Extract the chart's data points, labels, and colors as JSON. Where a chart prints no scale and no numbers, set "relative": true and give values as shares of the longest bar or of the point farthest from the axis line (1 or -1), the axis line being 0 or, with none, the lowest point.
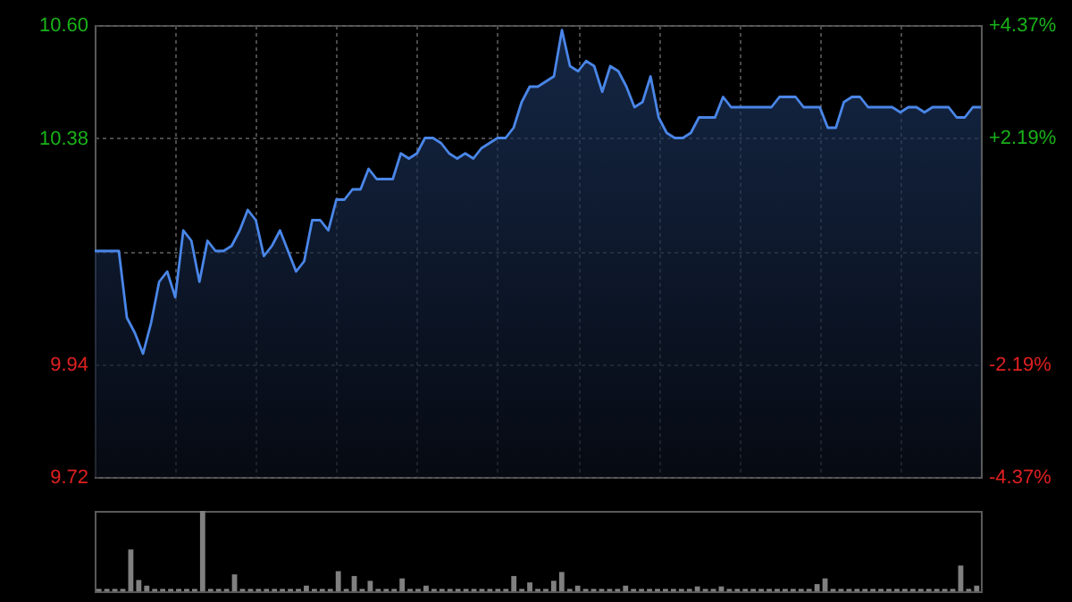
{
  "chart_data": [
    {
      "type": "area",
      "color": "#4a86e8",
      "categories": [
        null,
        null,
        null,
        null,
        null,
        null,
        null,
        null,
        null,
        null,
        null,
        null,
        null,
        null,
        null,
        null,
        null,
        null,
        null,
        null,
        null,
        null,
        null,
        null,
        null,
        null,
        null,
        null,
        null,
        null,
        null,
        null,
        null,
        null,
        null,
        null,
        null,
        null,
        null,
        null,
        null,
        null,
        null,
        null,
        null,
        null,
        null,
        null,
        null,
        null,
        null,
        null,
        null,
        null,
        null,
        null,
        null,
        null,
        null,
        null,
        null,
        null,
        null,
        null,
        null,
        null,
        null,
        null,
        null,
        null,
        null,
        null,
        null,
        null,
        null,
        null,
        null,
        null,
        null,
        null,
        null,
        null,
        null,
        null,
        null,
        null,
        null,
        null,
        null,
        null,
        null,
        null,
        null,
        null,
        null,
        null,
        null,
        null,
        null,
        null,
        null,
        null,
        null,
        null,
        null,
        null,
        null,
        null,
        null,
        null,
        null
      ],
      "values": [
        10.16,
        10.16,
        10.16,
        10.16,
        10.03,
        10.0,
        9.96,
        10.02,
        10.1,
        10.12,
        10.07,
        10.2,
        10.18,
        10.1,
        10.18,
        10.16,
        10.16,
        10.17,
        10.2,
        10.24,
        10.22,
        10.15,
        10.17,
        10.2,
        10.16,
        10.12,
        10.14,
        10.22,
        10.22,
        10.2,
        10.26,
        10.26,
        10.28,
        10.28,
        10.32,
        10.3,
        10.3,
        10.3,
        10.35,
        10.34,
        10.35,
        10.38,
        10.38,
        10.37,
        10.35,
        10.34,
        10.35,
        10.34,
        10.36,
        10.37,
        10.38,
        10.38,
        10.4,
        10.45,
        10.48,
        10.48,
        10.49,
        10.5,
        10.59,
        10.52,
        10.51,
        10.53,
        10.52,
        10.47,
        10.52,
        10.51,
        10.48,
        10.44,
        10.45,
        10.5,
        10.42,
        10.39,
        10.38,
        10.38,
        10.39,
        10.42,
        10.42,
        10.42,
        10.46,
        10.44,
        10.44,
        10.44,
        10.44,
        10.44,
        10.44,
        10.46,
        10.46,
        10.46,
        10.44,
        10.44,
        10.44,
        10.4,
        10.4,
        10.45,
        10.46,
        10.46,
        10.44,
        10.44,
        10.44,
        10.44,
        10.43,
        10.44,
        10.44,
        10.43,
        10.44,
        10.44,
        10.44,
        10.42,
        10.42,
        10.44,
        10.44
      ],
      "ylim": [
        9.72,
        10.6
      ],
      "yticks": [
        9.72,
        9.94,
        {
          "value": 10.16,
          "label": null
        },
        10.38,
        {
          "value": 10.6,
          "label": "10.60"
        }
      ],
      "y2lim": [
        -4.37,
        4.37
      ],
      "y2ticks": [
        {
          "value": -4.37,
          "label": "-4.37%"
        },
        {
          "value": -2.19,
          "label": "-2.19%"
        },
        {
          "value": 0,
          "label": null
        },
        {
          "value": 2.19,
          "label": "+2.19%"
        },
        {
          "value": 4.37,
          "label": "+4.37%"
        }
      ],
      "grid": true
    },
    {
      "type": "bar",
      "relative": true,
      "color": "#808080",
      "categories": [
        null,
        null,
        null,
        null,
        null,
        null,
        null,
        null,
        null,
        null,
        null,
        null,
        null,
        null,
        null,
        null,
        null,
        null,
        null,
        null,
        null,
        null,
        null,
        null,
        null,
        null,
        null,
        null,
        null,
        null,
        null,
        null,
        null,
        null,
        null,
        null,
        null,
        null,
        null,
        null,
        null,
        null,
        null,
        null,
        null,
        null,
        null,
        null,
        null,
        null,
        null,
        null,
        null,
        null,
        null,
        null,
        null,
        null,
        null,
        null,
        null,
        null,
        null,
        null,
        null,
        null,
        null,
        null,
        null,
        null,
        null,
        null,
        null,
        null,
        null,
        null,
        null,
        null,
        null,
        null,
        null,
        null,
        null,
        null,
        null,
        null,
        null,
        null,
        null,
        null,
        null,
        null,
        null,
        null,
        null,
        null,
        null,
        null,
        null,
        null,
        null,
        null,
        null,
        null,
        null,
        null,
        null,
        null,
        null,
        null,
        null
      ],
      "values": [
        0.03,
        0.03,
        0.03,
        0.03,
        0.52,
        0.14,
        0.07,
        0.03,
        0.03,
        0.03,
        0.03,
        0.03,
        0.03,
        1,
        0.03,
        0.03,
        0.03,
        0.21,
        0.03,
        0.03,
        0.03,
        0.03,
        0.03,
        0.03,
        0.03,
        0.03,
        0.07,
        0.03,
        0.03,
        0.03,
        0.25,
        0.03,
        0.19,
        0.03,
        0.13,
        0.03,
        0.03,
        0.03,
        0.16,
        0.03,
        0.03,
        0.07,
        0.03,
        0.03,
        0.03,
        0.03,
        0.03,
        0.03,
        0.03,
        0.03,
        0.03,
        0.03,
        0.19,
        0.03,
        0.11,
        0.03,
        0.03,
        0.13,
        0.24,
        0.03,
        0.07,
        0.03,
        0.03,
        0.03,
        0.03,
        0.03,
        0.07,
        0.03,
        0.03,
        0.03,
        0.03,
        0.03,
        0.03,
        0.03,
        0.03,
        0.06,
        0.03,
        0.03,
        0.06,
        0.03,
        0.03,
        0.03,
        0.03,
        0.03,
        0.03,
        0.03,
        0.03,
        0.03,
        0.03,
        0.03,
        0.09,
        0.16,
        0.03,
        0.03,
        0.03,
        0.03,
        0.03,
        0.03,
        0.03,
        0.03,
        0.03,
        0.03,
        0.03,
        0.03,
        0.03,
        0.03,
        0.03,
        0.03,
        0.32,
        0.03,
        0.07
      ]
    }
  ]
}
